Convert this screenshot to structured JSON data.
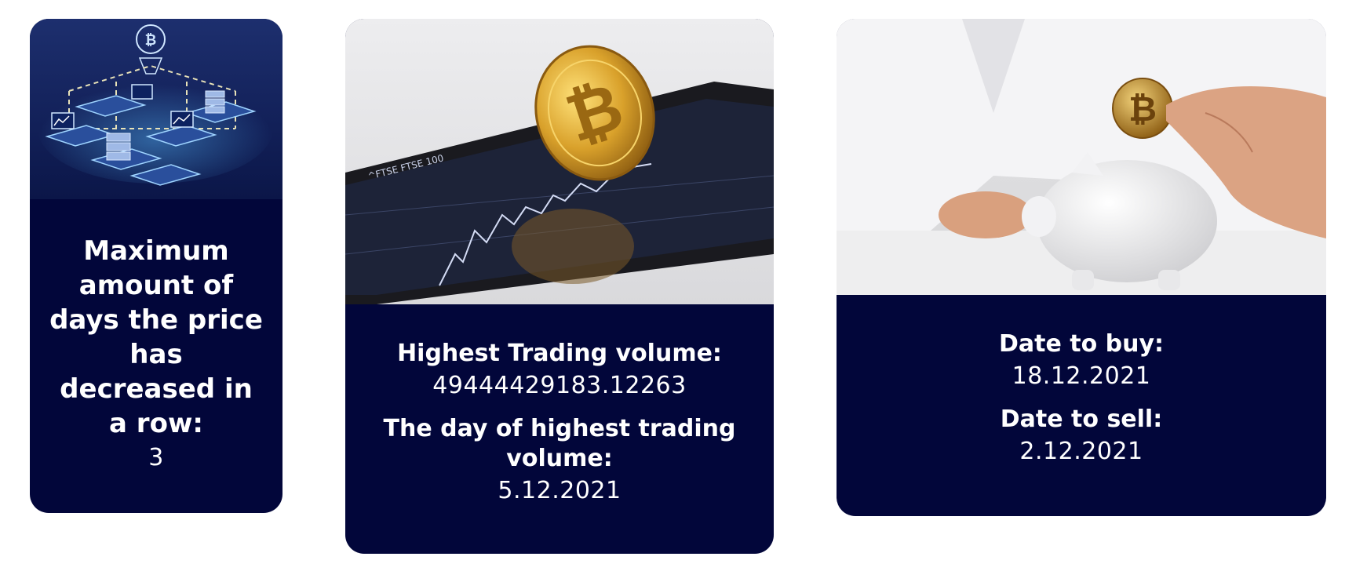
{
  "cards": [
    {
      "image_icon": "blockchain-network-image",
      "label": "Maximum amount of days the price has decreased in a row:",
      "value": "3"
    },
    {
      "image_icon": "bitcoin-phone-chart-image",
      "label_1": "Highest Trading volume:",
      "value_1": "49444429183.12263",
      "label_2": "The day of highest trading volume:",
      "value_2": "5.12.2021"
    },
    {
      "image_icon": "bitcoin-piggy-bank-image",
      "label_1": "Date to buy:",
      "value_1": "18.12.2021",
      "label_2": "Date to sell:",
      "value_2": "2.12.2021"
    }
  ],
  "colors": {
    "card_background": "#02063a",
    "page_background": "#ffffff",
    "text": "#ffffff",
    "coin_gold": "#d4a12c"
  }
}
